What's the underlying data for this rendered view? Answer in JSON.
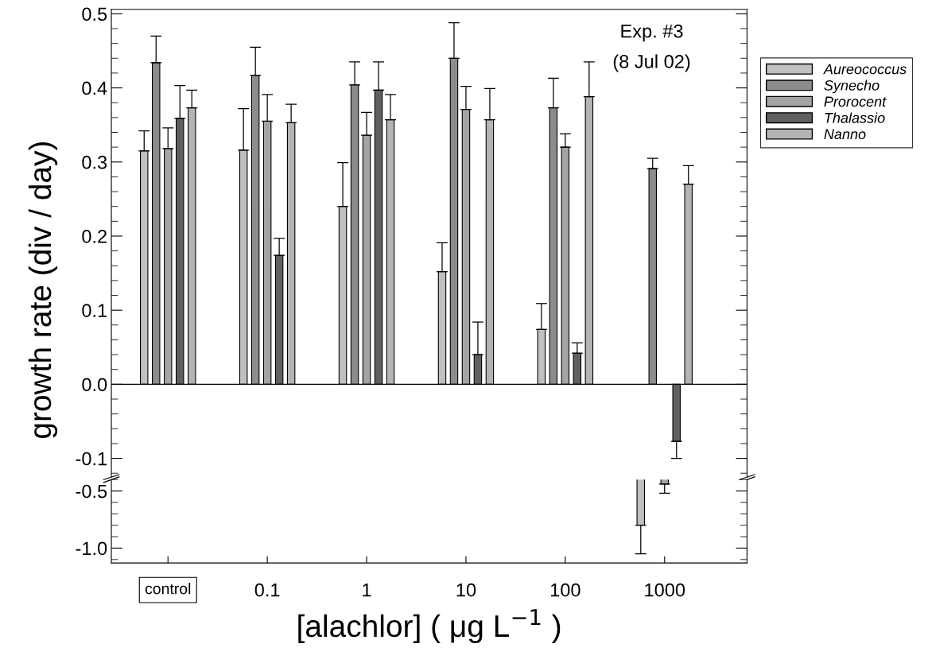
{
  "chart_data": [
    {
      "type": "bar",
      "categories": [
        null,
        null,
        null,
        null,
        null,
        null
      ],
      "ylabel": "growth rate (div / day)",
      "ylim": [
        -0.125,
        0.506
      ],
      "yticks": [
        -0.1,
        {
          "value": 0.0,
          "label": "0.0"
        },
        0.1,
        0.2,
        0.3,
        0.4,
        0.5
      ],
      "tick_labels": "y",
      "legend": "right",
      "annotations": [
        "Exp. #3",
        "(8 Jul 02)"
      ],
      "ref_lines": [
        {
          "axis": "y",
          "value": 0
        }
      ],
      "series": [
        {
          "name": "Aureococcus",
          "color": "#c0c0c0",
          "values": [
            0.315,
            0.316,
            0.24,
            0.152,
            0.074,
            null
          ],
          "errors": [
            0.027,
            0.056,
            0.059,
            0.039,
            0.035,
            null
          ]
        },
        {
          "name": "Synecho",
          "color": "#8c8c8c",
          "values": [
            0.434,
            0.417,
            0.404,
            0.44,
            0.373,
            0.291
          ],
          "errors": [
            0.036,
            0.038,
            0.031,
            0.048,
            0.04,
            0.014
          ]
        },
        {
          "name": "Prorocent",
          "color": "#a4a4a4",
          "values": [
            0.318,
            0.355,
            0.336,
            0.371,
            0.32,
            null
          ],
          "errors": [
            0.028,
            0.036,
            0.031,
            0.031,
            0.018,
            null
          ]
        },
        {
          "name": "Thalassio",
          "color": "#606060",
          "values": [
            0.359,
            0.174,
            0.397,
            0.04,
            0.042,
            -0.077
          ],
          "errors": [
            0.044,
            0.023,
            0.038,
            0.044,
            0.014,
            0.023
          ]
        },
        {
          "name": "Nanno",
          "color": "#b4b4b4",
          "values": [
            0.373,
            0.353,
            0.357,
            0.357,
            0.388,
            0.27
          ],
          "errors": [
            0.024,
            0.025,
            0.034,
            0.042,
            0.047,
            0.025
          ]
        }
      ]
    },
    {
      "type": "bar",
      "categories": [
        "control",
        "0.1",
        "1",
        "10",
        "100",
        "1000"
      ],
      "xlabel": "[alachlor] ( μg L$^{−1}$ )",
      "ylim": [
        -1.13,
        -0.4
      ],
      "yticks": [
        {
          "value": -1.0,
          "label": "-1.0"
        },
        -0.5
      ],
      "series": [
        {
          "color": "#c0c0c0",
          "values": [
            null,
            null,
            null,
            null,
            null,
            -0.8
          ],
          "errors": [
            null,
            null,
            null,
            null,
            null,
            0.25
          ]
        },
        {
          "color": "#8c8c8c",
          "values": [
            null,
            null,
            null,
            null,
            null,
            null
          ]
        },
        {
          "color": "#a4a4a4",
          "values": [
            null,
            null,
            null,
            null,
            null,
            -0.44
          ],
          "errors": [
            null,
            null,
            null,
            null,
            null,
            0.08
          ]
        },
        {
          "color": "#606060",
          "values": [
            null,
            null,
            null,
            null,
            null,
            null
          ]
        },
        {
          "color": "#b4b4b4",
          "values": [
            null,
            null,
            null,
            null,
            null,
            null
          ]
        }
      ]
    }
  ]
}
